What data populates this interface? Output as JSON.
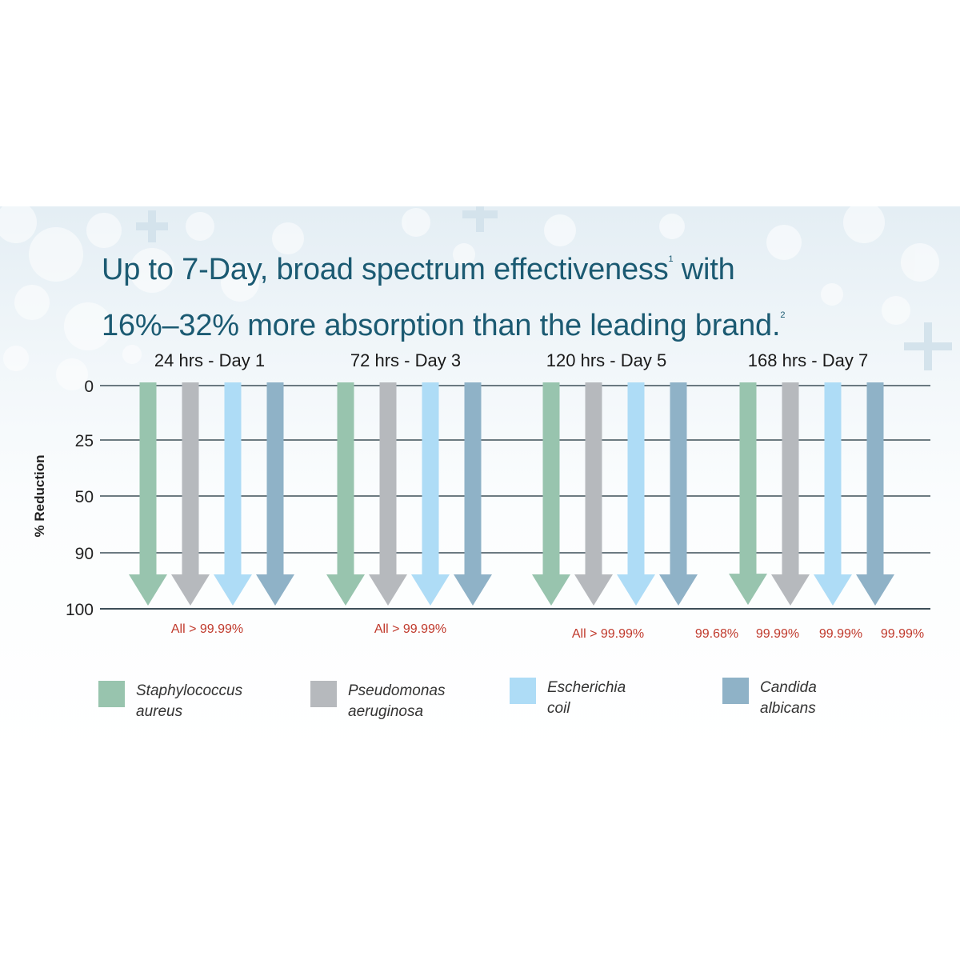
{
  "headline": {
    "line1": "Up to 7-Day, broad spectrum effectiveness",
    "sup1": "1",
    "line1_tail": " with",
    "line2": "16%–32% more absorption than the leading brand.",
    "sup2": "2"
  },
  "colors": {
    "headline": "#1b5a72",
    "annotation": "#c0392b",
    "staphylococcus": "#98c4ae",
    "pseudomonas": "#b6b9bd",
    "escherichia": "#aedcf6",
    "candida": "#8fb2c7",
    "gridline": "#3d4f58"
  },
  "chart_data": {
    "type": "bar",
    "ylabel": "% Reduction",
    "y_ticks": [
      "0",
      "25",
      "50",
      "90",
      "100"
    ],
    "categories": [
      "24 hrs - Day 1",
      "72 hrs - Day 3",
      "120 hrs - Day 5",
      "168 hrs - Day 7"
    ],
    "series": [
      {
        "name": "Staphylococcus aureus",
        "values": [
          99.99,
          99.99,
          99.99,
          99.68
        ]
      },
      {
        "name": "Pseudomonas aeruginosa",
        "values": [
          99.99,
          99.99,
          99.99,
          99.99
        ]
      },
      {
        "name": "Escherichia coil",
        "values": [
          99.99,
          99.99,
          99.99,
          99.99
        ]
      },
      {
        "name": "Candida albicans",
        "values": [
          99.99,
          99.99,
          99.99,
          99.99
        ]
      }
    ],
    "annotations": [
      {
        "group": 0,
        "text": "All > 99.99%"
      },
      {
        "group": 1,
        "text": "All > 99.99%"
      },
      {
        "group": 2,
        "text": "All > 99.99%"
      },
      {
        "group": 3,
        "texts": [
          "99.68%",
          "99.99%",
          "99.99%",
          "99.99%"
        ]
      }
    ]
  },
  "legend": [
    {
      "line1": "Staphylococcus",
      "line2": "aureus",
      "color_key": "staphylococcus"
    },
    {
      "line1": "Pseudomonas",
      "line2": "aeruginosa",
      "color_key": "pseudomonas"
    },
    {
      "line1": "Escherichia coil",
      "line2": "",
      "color_key": "escherichia"
    },
    {
      "line1": "Candida albicans",
      "line2": "",
      "color_key": "candida"
    }
  ]
}
